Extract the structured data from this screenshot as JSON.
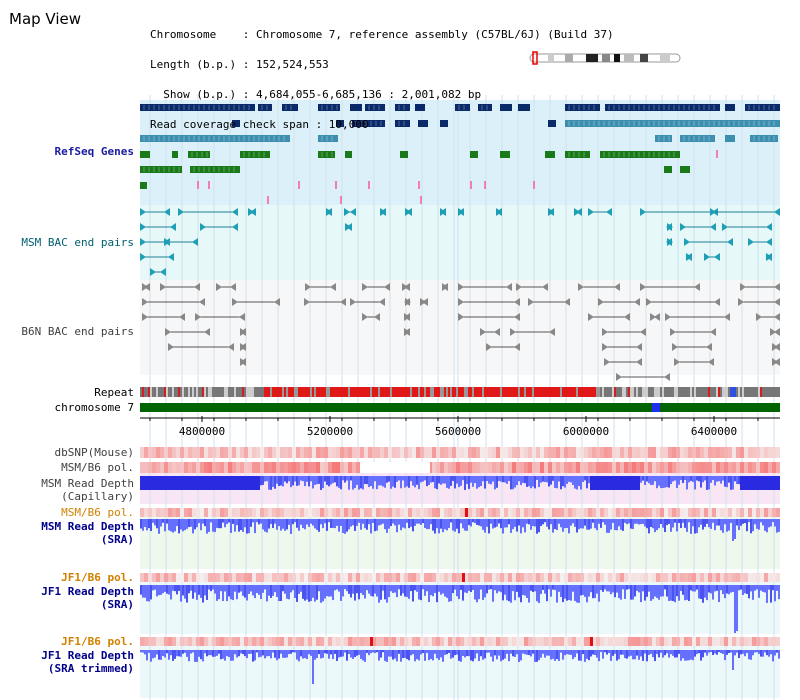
{
  "title": "Map View",
  "info": {
    "line1": "Chromosome    : Chromosome 7, reference assembly (C57BL/6J) (Build 37)",
    "line2": "Length (b.p.) : 152,524,553",
    "line3": "  Show (b.p.) : 4,684,055-6,685,136 : 2,001,082 bp",
    "line4": "Read coverage check span : 10,000"
  },
  "tracks": {
    "refseq": "RefSeq Genes",
    "msm_bac": "MSM BAC end pairs",
    "b6n_bac": "B6N BAC end pairs",
    "repeat": "Repeat",
    "chromosome": "chromosome 7",
    "dbsnp": "dbSNP(Mouse)",
    "msm_b6_pol_1": "MSM/B6 pol.",
    "msm_depth_cap_1": "MSM Read Depth",
    "msm_depth_cap_2": "(Capillary)",
    "msm_b6_pol_2": "MSM/B6 pol.",
    "msm_depth_sra_1": "MSM Read Depth",
    "msm_depth_sra_2": "(SRA)",
    "jf1_b6_pol_1": "JF1/B6 pol.",
    "jf1_depth_sra_1": "JF1 Read Depth",
    "jf1_depth_sra_2": "(SRA)",
    "jf1_b6_pol_2": "JF1/B6 pol.",
    "jf1_depth_trim_1": "JF1 Read Depth",
    "jf1_depth_trim_2": "(SRA trimmed)"
  },
  "axis": {
    "ticks": [
      "4800000",
      "5200000",
      "5600000",
      "6000000",
      "6400000"
    ]
  },
  "colors": {
    "refseq_bg": "#dcf0fa",
    "msm_bac_bg": "#e6f8f8",
    "gene_navy": "#0a2a6a",
    "gene_blue": "#3d8fb0",
    "gene_green": "#1a7a1a",
    "chromosome_bar": "#006400",
    "depth_blue": "#6670ff"
  }
}
